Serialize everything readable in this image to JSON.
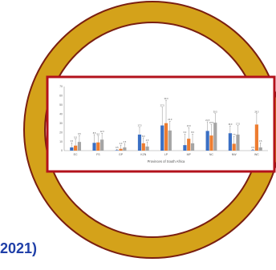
{
  "caption": {
    "year_text": "2021)"
  },
  "colors": {
    "ring": "#d4a21a",
    "ring_edge": "#7a1f10",
    "frame": "#b3121c",
    "series": [
      "#3a6fc4",
      "#ed7d31",
      "#a5a5a5"
    ]
  },
  "chart_data": {
    "type": "bar",
    "title": "",
    "xlabel": "Provinces of South Africa",
    "ylabel": "",
    "categories": [
      "EC",
      "FS",
      "GP",
      "KZN",
      "LP",
      "MP",
      "NC",
      "NW",
      "WC"
    ],
    "ylim": [
      0,
      70
    ],
    "yticks": [
      0,
      10,
      20,
      30,
      40,
      50,
      60,
      70
    ],
    "grid": false,
    "legend": "none",
    "series": [
      {
        "values": [
          3.5,
          8.5,
          0.5,
          17.5,
          27.5,
          6.0,
          21.5,
          19.0,
          0.5
        ],
        "errors": [
          5,
          9,
          1,
          8,
          20,
          12,
          10,
          8,
          1
        ]
      },
      {
        "values": [
          5.5,
          9.0,
          2.0,
          8.0,
          30.0,
          13.0,
          16.5,
          7.5,
          28.5
        ],
        "errors": [
          7,
          7,
          4,
          6,
          25,
          12,
          12,
          8,
          12
        ]
      },
      {
        "values": [
          9.5,
          12.0,
          3.5,
          4.5,
          22.0,
          8.0,
          30.5,
          17.5,
          3.5
        ],
        "errors": [
          7,
          7,
          4,
          5,
          10,
          10,
          10,
          10,
          5
        ]
      }
    ],
    "data_labels": [
      [
        "3.5",
        "5.5",
        "9.5"
      ],
      [
        "8.5",
        "9.0",
        "12.0"
      ],
      [
        "0.5",
        "2.0",
        "3.5"
      ],
      [
        "17.5",
        "8.0",
        "4.5"
      ],
      [
        "27.5",
        "30.0",
        "22.0"
      ],
      [
        "6.0",
        "13.0",
        "8.0"
      ],
      [
        "21.5",
        "16.5",
        "30.5"
      ],
      [
        "19.0",
        "7.5",
        "17.5"
      ],
      [
        "0.5",
        "28.5",
        "3.5"
      ]
    ]
  }
}
